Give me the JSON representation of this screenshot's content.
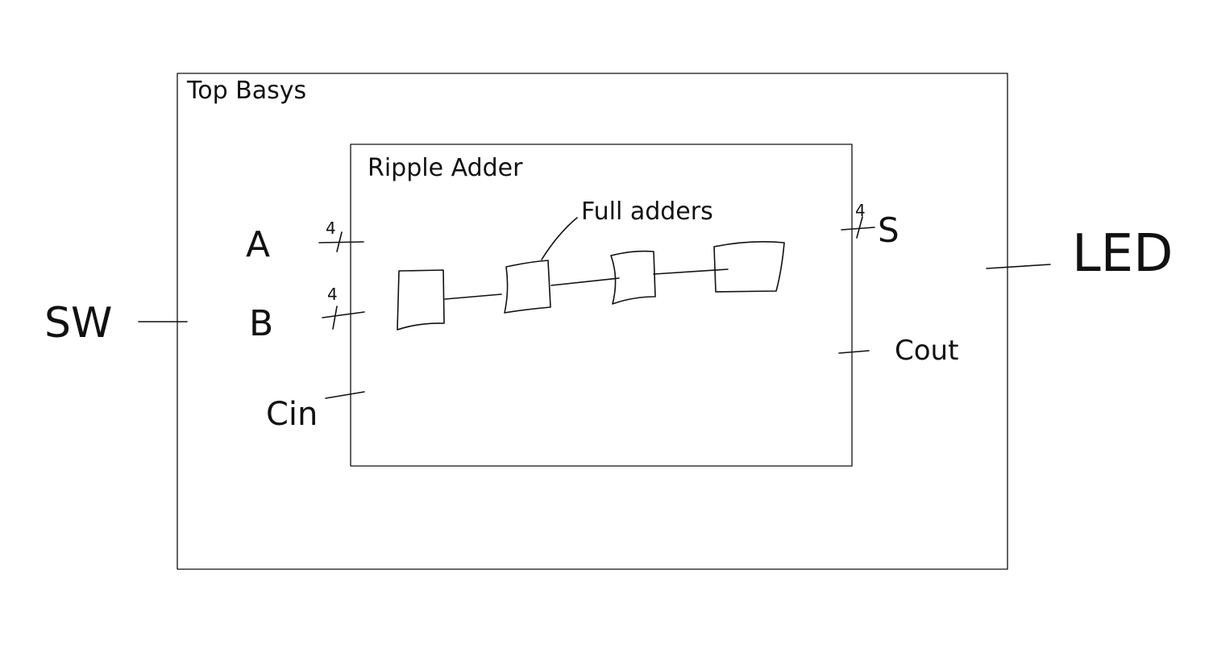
{
  "outer_module": {
    "label": "Top Basys"
  },
  "inner_module": {
    "label": "Ripple Adder"
  },
  "full_adders": {
    "label": "Full adders",
    "count": 4
  },
  "inputs": {
    "external": "SW",
    "a": {
      "name": "A",
      "width": "4"
    },
    "b": {
      "name": "B",
      "width": "4"
    },
    "cin": {
      "name": "Cin"
    }
  },
  "outputs": {
    "external": "LED",
    "s": {
      "name": "S",
      "width": "4"
    },
    "cout": {
      "name": "Cout"
    }
  },
  "colors": {
    "ink": "#111111",
    "background": "#ffffff"
  }
}
